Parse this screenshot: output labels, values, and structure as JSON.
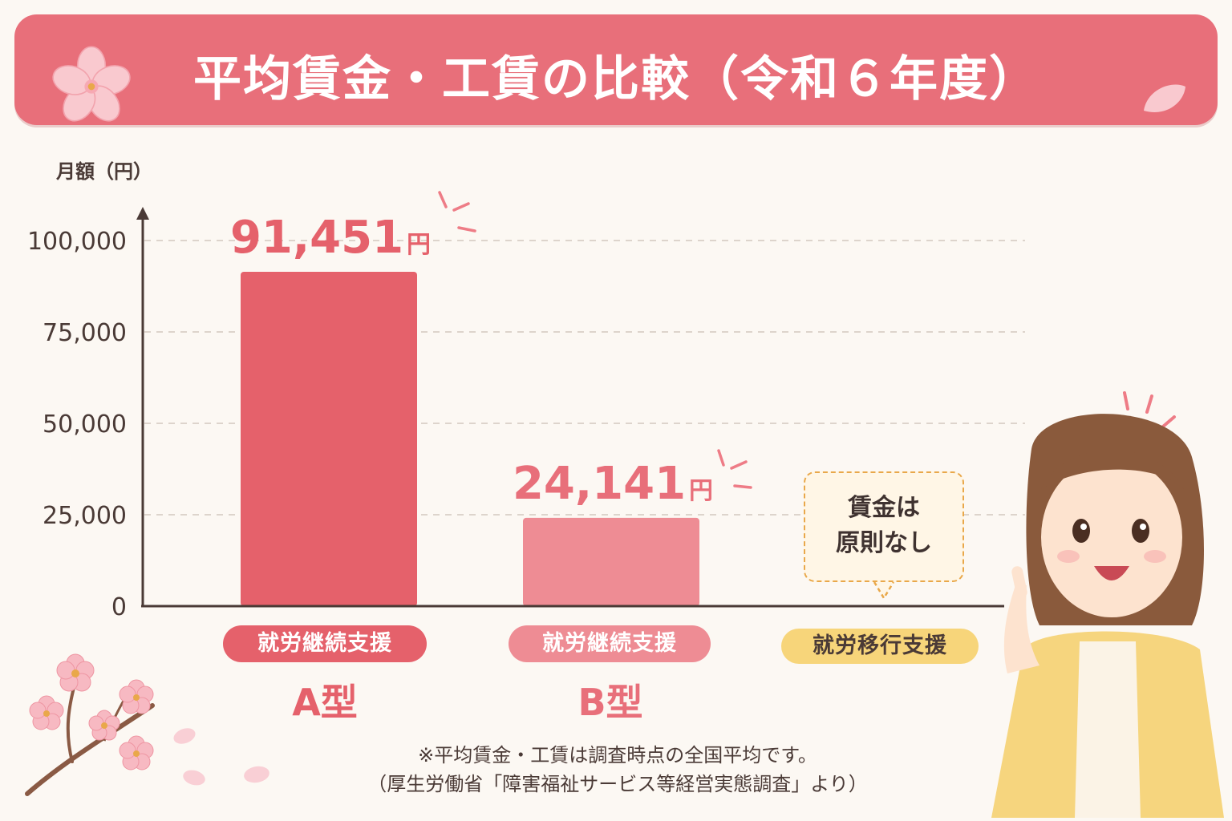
{
  "title": "平均賃金・工賃の比較（令和６年度）",
  "chart_data": {
    "type": "bar",
    "ylabel": "月額（円）",
    "ylim": [
      0,
      100000
    ],
    "yticks": [
      0,
      25000,
      50000,
      75000,
      100000
    ],
    "ytick_labels": [
      "0",
      "25,000",
      "50,000",
      "75,000",
      "100,000"
    ],
    "grid": true,
    "categories": [
      "就労継続支援A型",
      "就労継続支援B型",
      "就労移行支援"
    ],
    "values": [
      91451,
      24141,
      null
    ],
    "value_labels": [
      "91,451",
      "24,141",
      ""
    ],
    "value_unit": "円",
    "bar_colors": [
      "#e5616b",
      "#ee8c94",
      "#f7d57a"
    ]
  },
  "categories_display": [
    {
      "pill": "就労継続支援",
      "type": "A型"
    },
    {
      "pill": "就労継続支援",
      "type": "B型"
    },
    {
      "pill": "就労移行支援",
      "type": ""
    }
  ],
  "callout": {
    "line1": "賃金は",
    "line2": "原則なし"
  },
  "footnote": {
    "line1": "※平均賃金・工賃は調査時点の全国平均です。",
    "line2": "（厚生労働省「障害福祉サービス等経営実態調査」より）"
  },
  "colors": {
    "banner": "#e86f7a",
    "bar_a": "#e5616b",
    "bar_b": "#ee8c94",
    "pill_transition": "#f7d57a",
    "axis": "#4a3a36",
    "background": "#fcf8f3"
  },
  "icons": [
    "cherry-blossom-icon",
    "petal-icon",
    "sparkle-icon",
    "woman-pointing-illustration"
  ]
}
